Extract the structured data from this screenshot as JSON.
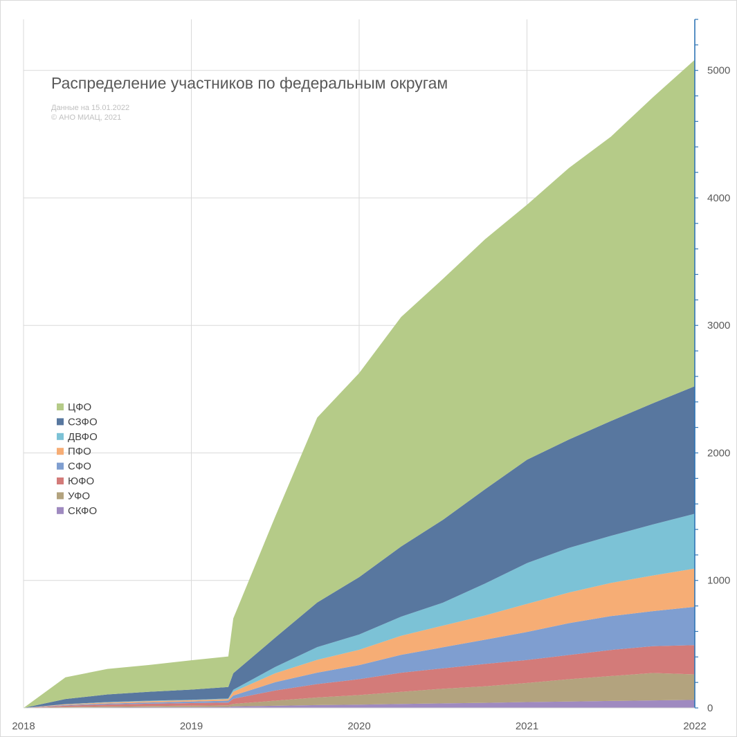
{
  "chart_data": {
    "type": "area",
    "stacked": true,
    "title": "Распределение участников по федеральным округам",
    "subtitle_lines": [
      "Данные на 15.01.2022",
      "© АНО МИАЦ, 2021"
    ],
    "x_ticks": [
      "2018",
      "2019",
      "2020",
      "2021",
      "2022"
    ],
    "xlim": [
      2018.0,
      2022.0
    ],
    "y_ticks": [
      "0",
      "1000",
      "2000",
      "3000",
      "4000",
      "5000"
    ],
    "ylim": [
      0,
      5400
    ],
    "y_axis_side": "right",
    "grid": true,
    "legend_position": "left",
    "x": [
      2018.0,
      2018.25,
      2018.5,
      2018.75,
      2019.0,
      2019.22,
      2019.25,
      2019.5,
      2019.75,
      2020.0,
      2020.25,
      2020.5,
      2020.75,
      2021.0,
      2021.25,
      2021.5,
      2021.75,
      2022.0
    ],
    "series": [
      {
        "name": "СКФО",
        "color": "#9f8ac0",
        "values": [
          0,
          3,
          5,
          6,
          7,
          8,
          12,
          17,
          22,
          26,
          31,
          36,
          40,
          46,
          50,
          55,
          59,
          63
        ]
      },
      {
        "name": "УФО",
        "color": "#b3a37e",
        "values": [
          0,
          5,
          7,
          9,
          11,
          12,
          20,
          40,
          60,
          75,
          95,
          115,
          130,
          150,
          175,
          195,
          215,
          200
        ]
      },
      {
        "name": "ЮФО",
        "color": "#d37b79",
        "values": [
          0,
          10,
          15,
          18,
          20,
          22,
          40,
          80,
          105,
          125,
          150,
          160,
          175,
          180,
          190,
          205,
          210,
          230
        ]
      },
      {
        "name": "СФО",
        "color": "#7f9ed0",
        "values": [
          0,
          5,
          8,
          10,
          12,
          15,
          25,
          65,
          90,
          110,
          140,
          165,
          190,
          220,
          250,
          265,
          275,
          300
        ]
      },
      {
        "name": "ПФО",
        "color": "#f6ad75",
        "values": [
          0,
          5,
          8,
          10,
          10,
          12,
          30,
          70,
          100,
          120,
          150,
          170,
          190,
          220,
          240,
          260,
          280,
          300
        ]
      },
      {
        "name": "ДВФО",
        "color": "#7cc2d6",
        "values": [
          0,
          2,
          3,
          4,
          4,
          5,
          15,
          50,
          100,
          120,
          150,
          180,
          250,
          320,
          350,
          370,
          400,
          430
        ]
      },
      {
        "name": "СЗФО",
        "color": "#58779f",
        "values": [
          0,
          40,
          60,
          70,
          80,
          90,
          130,
          230,
          350,
          450,
          550,
          650,
          740,
          810,
          850,
          900,
          950,
          1000
        ]
      },
      {
        "name": "ЦФО",
        "color": "#b5cb88",
        "values": [
          0,
          170,
          200,
          210,
          230,
          240,
          430,
          950,
          1450,
          1600,
          1800,
          1890,
          1960,
          2000,
          2130,
          2230,
          2400,
          2560
        ]
      }
    ]
  }
}
